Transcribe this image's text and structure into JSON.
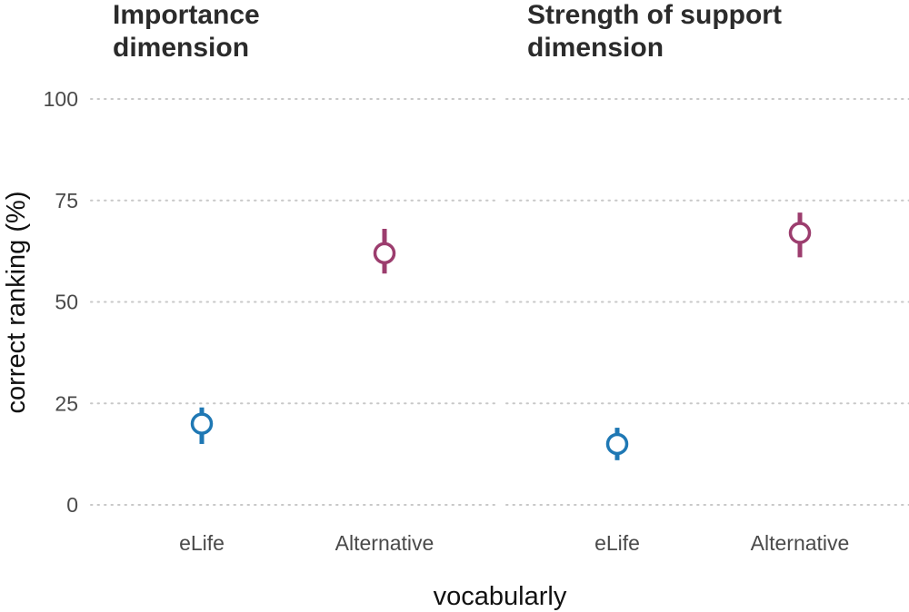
{
  "chart_data": {
    "type": "scatter",
    "ylabel": "correct ranking (%)",
    "xlabel": "vocabularly",
    "ylim": [
      0,
      100
    ],
    "yticks": [
      0,
      25,
      50,
      75,
      100
    ],
    "grid": "horizontal-dotted",
    "categories": [
      "eLife",
      "Alternative"
    ],
    "category_colors": {
      "eLife": "#1f78b4",
      "Alternative": "#9c3d6e"
    },
    "panels": [
      {
        "title_lines": [
          "Importance",
          "dimension"
        ],
        "points": [
          {
            "category": "eLife",
            "y": 20,
            "lower": 15,
            "upper": 24
          },
          {
            "category": "Alternative",
            "y": 62,
            "lower": 57,
            "upper": 68
          }
        ]
      },
      {
        "title_lines": [
          "Strength of support",
          "dimension"
        ],
        "points": [
          {
            "category": "eLife",
            "y": 15,
            "lower": 11,
            "upper": 19
          },
          {
            "category": "Alternative",
            "y": 67,
            "lower": 61,
            "upper": 72
          }
        ]
      }
    ]
  }
}
